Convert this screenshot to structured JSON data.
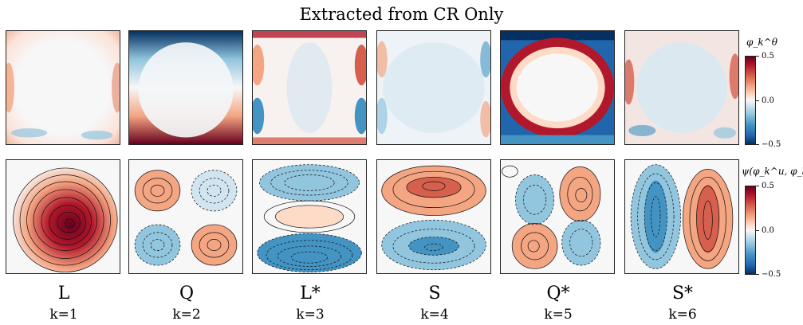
{
  "title": "Extracted from CR Only",
  "colorbars": [
    {
      "label": "φ_k^θ",
      "ticks": [
        "0.5",
        "0.0",
        "−0.5"
      ]
    },
    {
      "label": "ψ(φ_k^u, φ_k^v)",
      "ticks": [
        "0.5",
        "0.0",
        "−0.5"
      ]
    }
  ],
  "modes": [
    {
      "symbol": "L",
      "k": "k=1"
    },
    {
      "symbol": "Q",
      "k": "k=2"
    },
    {
      "symbol": "L*",
      "k": "k=3"
    },
    {
      "symbol": "S",
      "k": "k=4"
    },
    {
      "symbol": "Q*",
      "k": "k=5"
    },
    {
      "symbol": "S*",
      "k": "k=6"
    }
  ],
  "colors": {
    "positive": "#b2182b",
    "negative": "#2166ac",
    "neutral": "#f7f7f7"
  }
}
